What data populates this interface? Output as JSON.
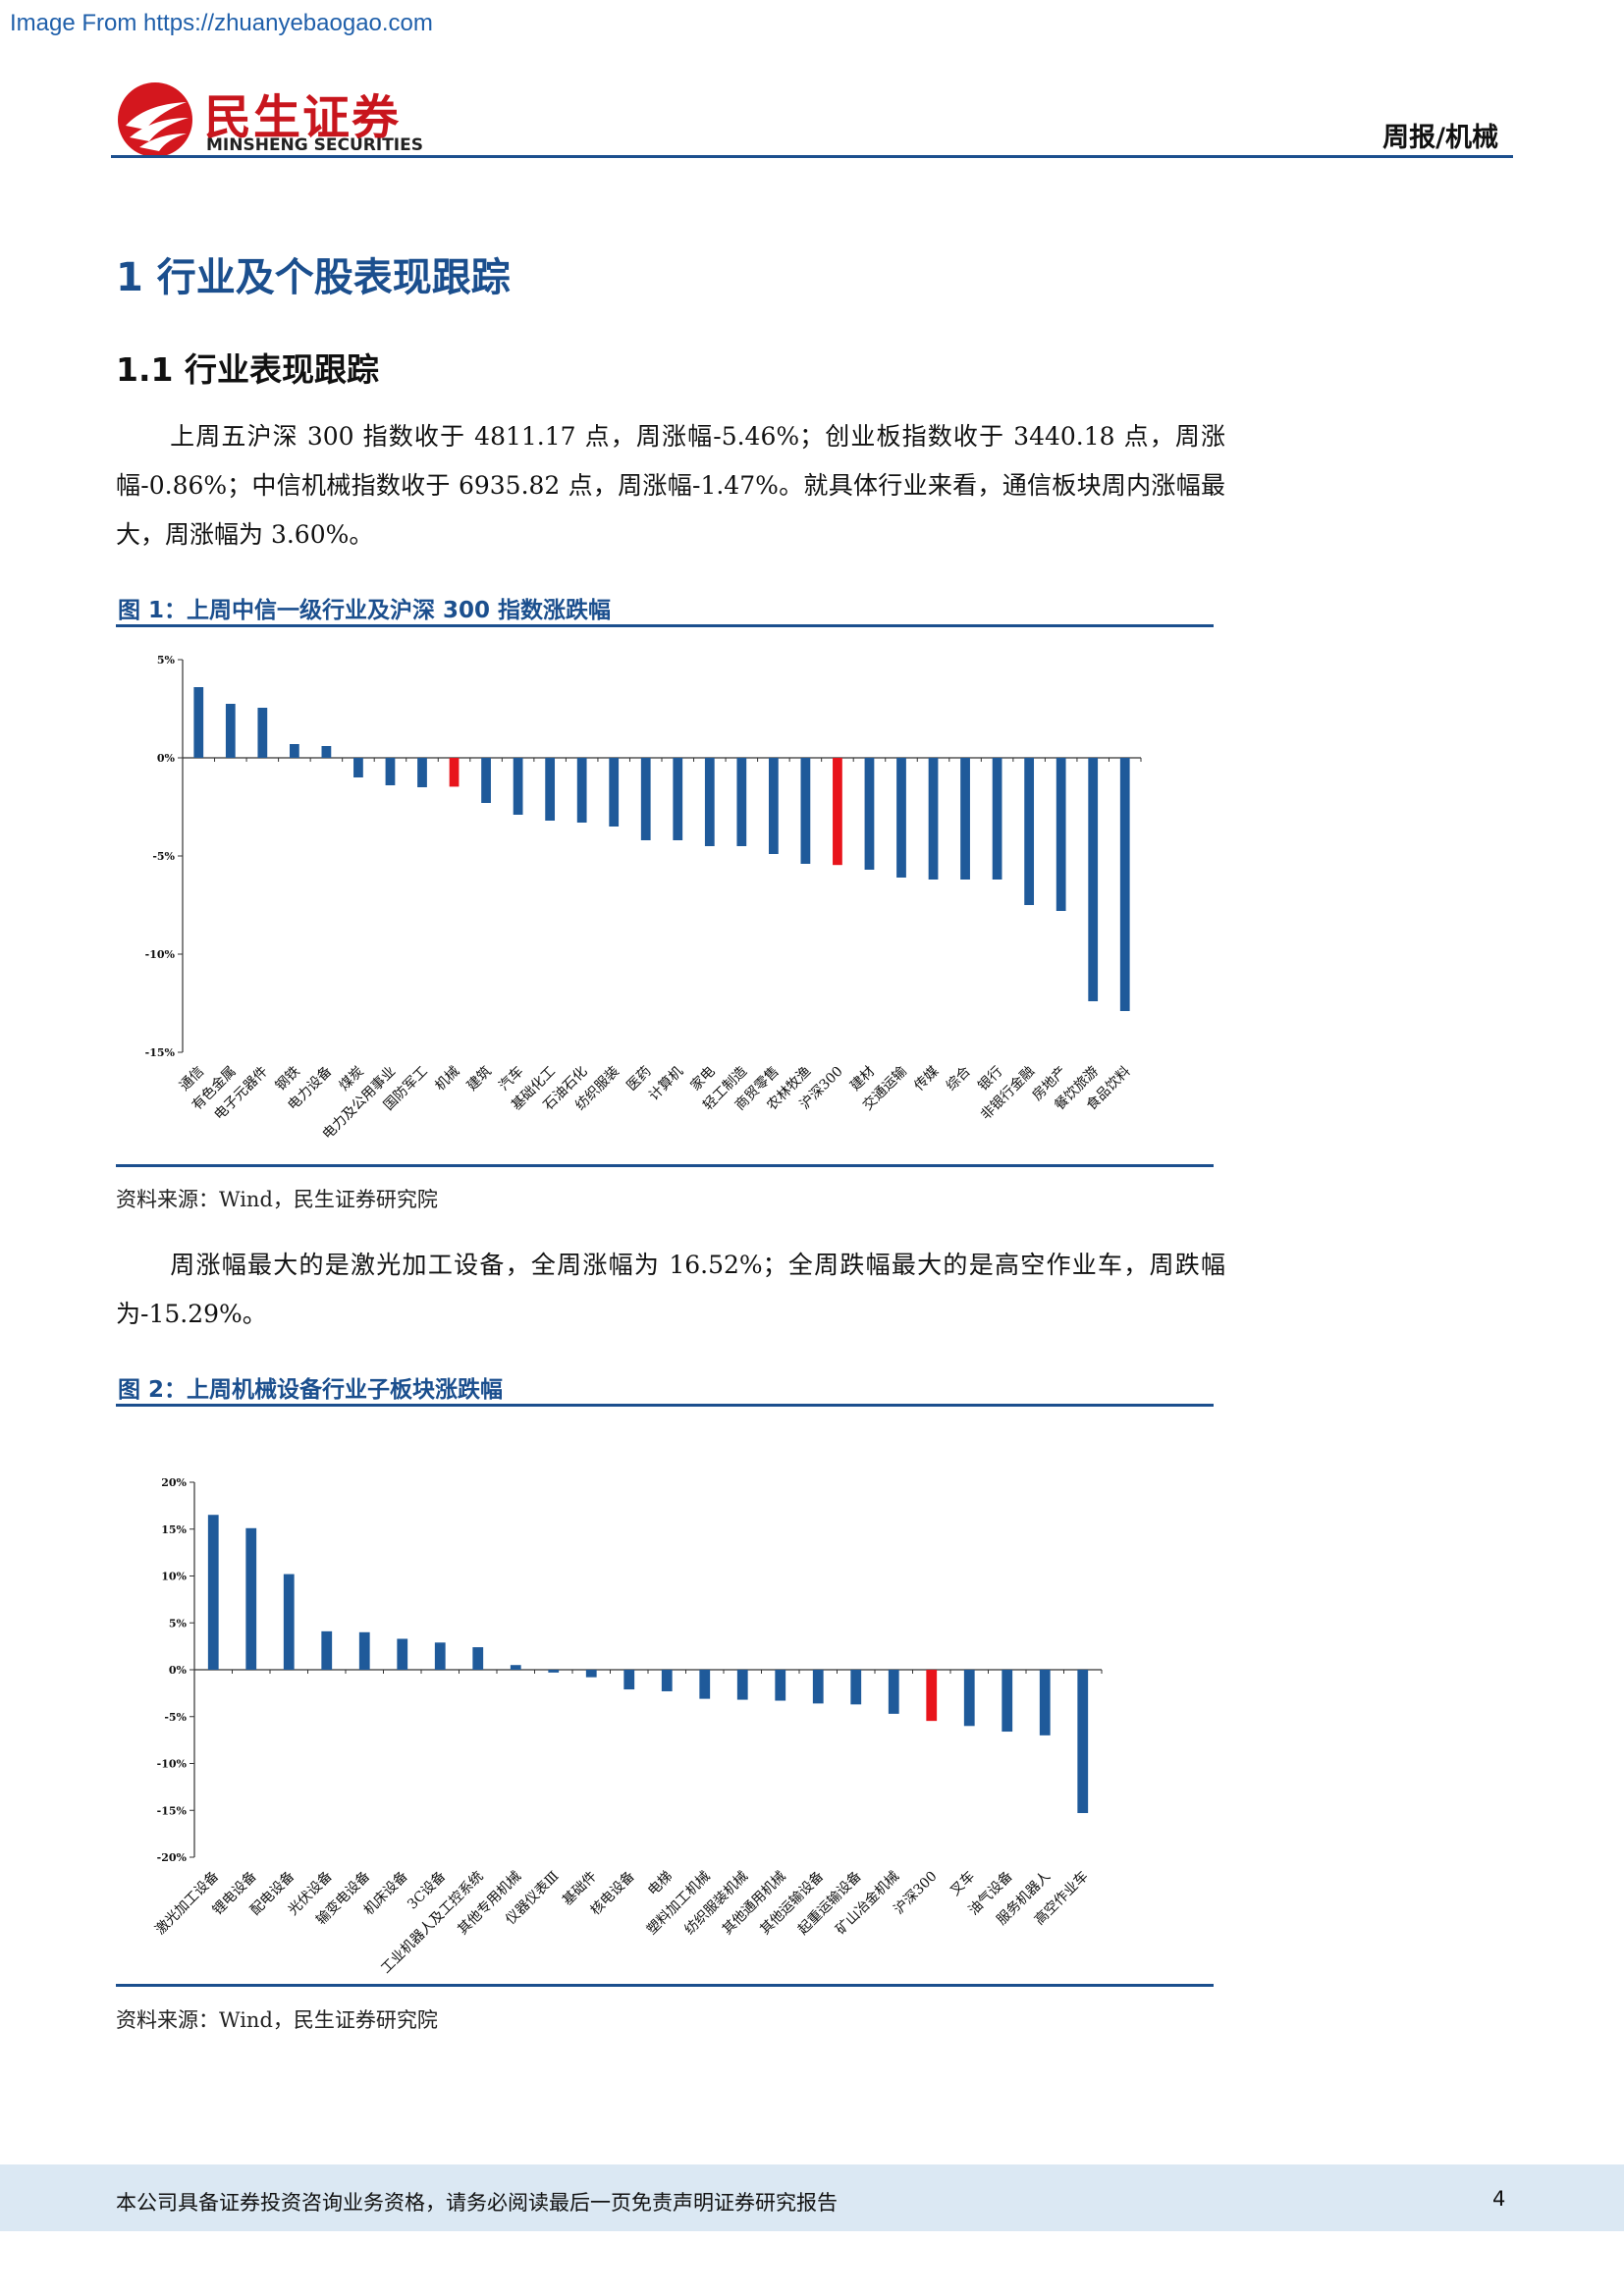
{
  "watermark": "Image From https://zhuanyebaogao.com",
  "header": {
    "logo_cn": "民生证券",
    "logo_en": "MINSHENG SECURITIES",
    "tag": "周报/机械"
  },
  "section": {
    "h1": "1 行业及个股表现跟踪",
    "h2": "1.1 行业表现跟踪",
    "para1": "上周五沪深 300 指数收于 4811.17 点，周涨幅-5.46%；创业板指数收于 3440.18 点，周涨幅-0.86%；中信机械指数收于 6935.82 点，周涨幅-1.47%。就具体行业来看，通信板块周内涨幅最大，周涨幅为 3.60%。",
    "para2": "周涨幅最大的是激光加工设备，全周涨幅为 16.52%；全周跌幅最大的是高空作业车，周跌幅为-15.29%。"
  },
  "figure1": {
    "title": "图 1：上周中信一级行业及沪深 300 指数涨跌幅",
    "source": "资料来源：Wind，民生证券研究院"
  },
  "figure2": {
    "title": "图 2：上周机械设备行业子板块涨跌幅",
    "source": "资料来源：Wind，民生证券研究院"
  },
  "footer": {
    "disclaimer": "本公司具备证券投资咨询业务资格，请务必阅读最后一页免责声明证券研究报告",
    "page": "4"
  },
  "colors": {
    "bar": "#1f5a9a",
    "highlight": "#e8141b",
    "accent": "#1b4f8e"
  },
  "chart_data": [
    {
      "type": "bar",
      "title": "上周中信一级行业及沪深 300 指数涨跌幅",
      "categories": [
        "通信",
        "有色金属",
        "电子元器件",
        "钢铁",
        "电力设备",
        "煤炭",
        "电力及公用事业",
        "国防军工",
        "机械",
        "建筑",
        "汽车",
        "基础化工",
        "石油石化",
        "纺织服装",
        "医药",
        "计算机",
        "家电",
        "轻工制造",
        "商贸零售",
        "农林牧渔",
        "沪深300",
        "建材",
        "交通运输",
        "传媒",
        "综合",
        "银行",
        "非银行金融",
        "房地产",
        "餐饮旅游",
        "食品饮料"
      ],
      "values": [
        3.6,
        2.75,
        2.55,
        0.7,
        0.6,
        -1.0,
        -1.4,
        -1.5,
        -1.47,
        -2.3,
        -2.9,
        -3.2,
        -3.3,
        -3.5,
        -4.2,
        -4.2,
        -4.5,
        -4.5,
        -4.9,
        -5.4,
        -5.46,
        -5.7,
        -6.1,
        -6.2,
        -6.2,
        -6.2,
        -7.5,
        -7.8,
        -12.4,
        -12.9
      ],
      "highlight": [
        "机械",
        "沪深300"
      ],
      "ylim": [
        -15,
        5
      ],
      "yticks": [
        "5%",
        "0%",
        "-5%",
        "-10%",
        "-15%"
      ],
      "ytick_values": [
        5,
        0,
        -5,
        -10,
        -15
      ],
      "grid": false,
      "legend": "none"
    },
    {
      "type": "bar",
      "title": "上周机械设备行业子板块涨跌幅",
      "categories": [
        "激光加工设备",
        "锂电设备",
        "配电设备",
        "光伏设备",
        "输变电设备",
        "机床设备",
        "3C设备",
        "工业机器人及工控系统",
        "其他专用机械",
        "仪器仪表Ⅲ",
        "基础件",
        "核电设备",
        "电梯",
        "塑料加工机械",
        "纺织服装机械",
        "其他通用机械",
        "其他运输设备",
        "起重运输设备",
        "矿山冶金机械",
        "沪深300",
        "叉车",
        "油气设备",
        "服务机器人",
        "高空作业车"
      ],
      "values": [
        16.52,
        15.1,
        10.2,
        4.1,
        4.0,
        3.3,
        2.9,
        2.4,
        0.5,
        -0.3,
        -0.8,
        -2.1,
        -2.3,
        -3.1,
        -3.2,
        -3.3,
        -3.6,
        -3.7,
        -4.7,
        -5.46,
        -6.0,
        -6.6,
        -7.0,
        -15.29
      ],
      "highlight": [
        "沪深300"
      ],
      "ylim": [
        -20,
        20
      ],
      "yticks": [
        "20%",
        "15%",
        "10%",
        "5%",
        "0%",
        "-5%",
        "-10%",
        "-15%",
        "-20%"
      ],
      "ytick_values": [
        20,
        15,
        10,
        5,
        0,
        -5,
        -10,
        -15,
        -20
      ],
      "grid": false,
      "legend": "none"
    }
  ]
}
